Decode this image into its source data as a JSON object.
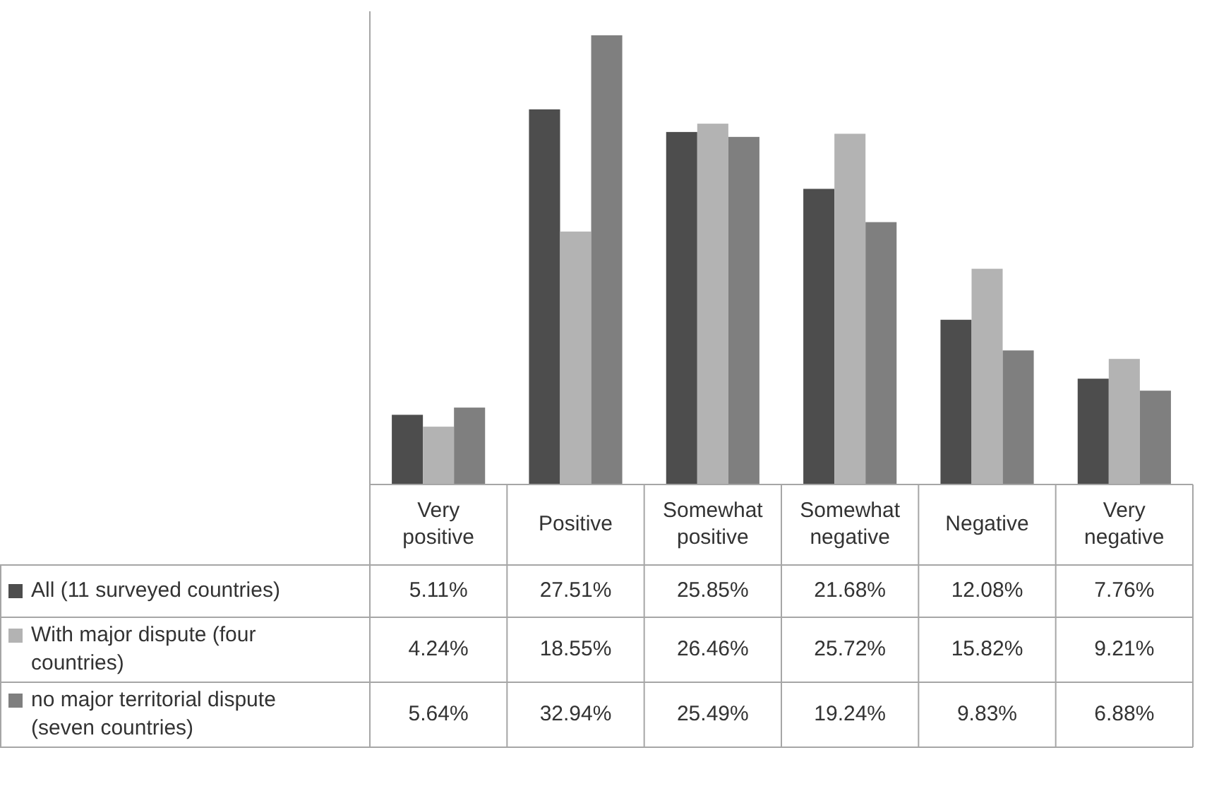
{
  "chart_data": {
    "type": "bar",
    "categories": [
      "Very positive",
      "Positive",
      "Somewhat positive",
      "Somewhat negative",
      "Negative",
      "Very negative"
    ],
    "series": [
      {
        "name": "All (11 surveyed countries)",
        "color": "#4d4d4d",
        "values": [
          5.11,
          27.51,
          25.85,
          21.68,
          12.08,
          7.76
        ],
        "value_labels": [
          "5.11%",
          "27.51%",
          "25.85%",
          "21.68%",
          "12.08%",
          "7.76%"
        ]
      },
      {
        "name": "With major dispute (four countries)",
        "color": "#b3b3b3",
        "values": [
          4.24,
          18.55,
          26.46,
          25.72,
          15.82,
          9.21
        ],
        "value_labels": [
          "4.24%",
          "18.55%",
          "26.46%",
          "25.72%",
          "15.82%",
          "9.21%"
        ]
      },
      {
        "name": "no major territorial dispute (seven countries)",
        "color": "#7f7f7f",
        "values": [
          5.64,
          32.94,
          25.49,
          19.24,
          9.83,
          6.88
        ],
        "value_labels": [
          "5.64%",
          "32.94%",
          "25.49%",
          "19.24%",
          "9.83%",
          "6.88%"
        ]
      }
    ],
    "legend": "bottom",
    "grid": false
  }
}
